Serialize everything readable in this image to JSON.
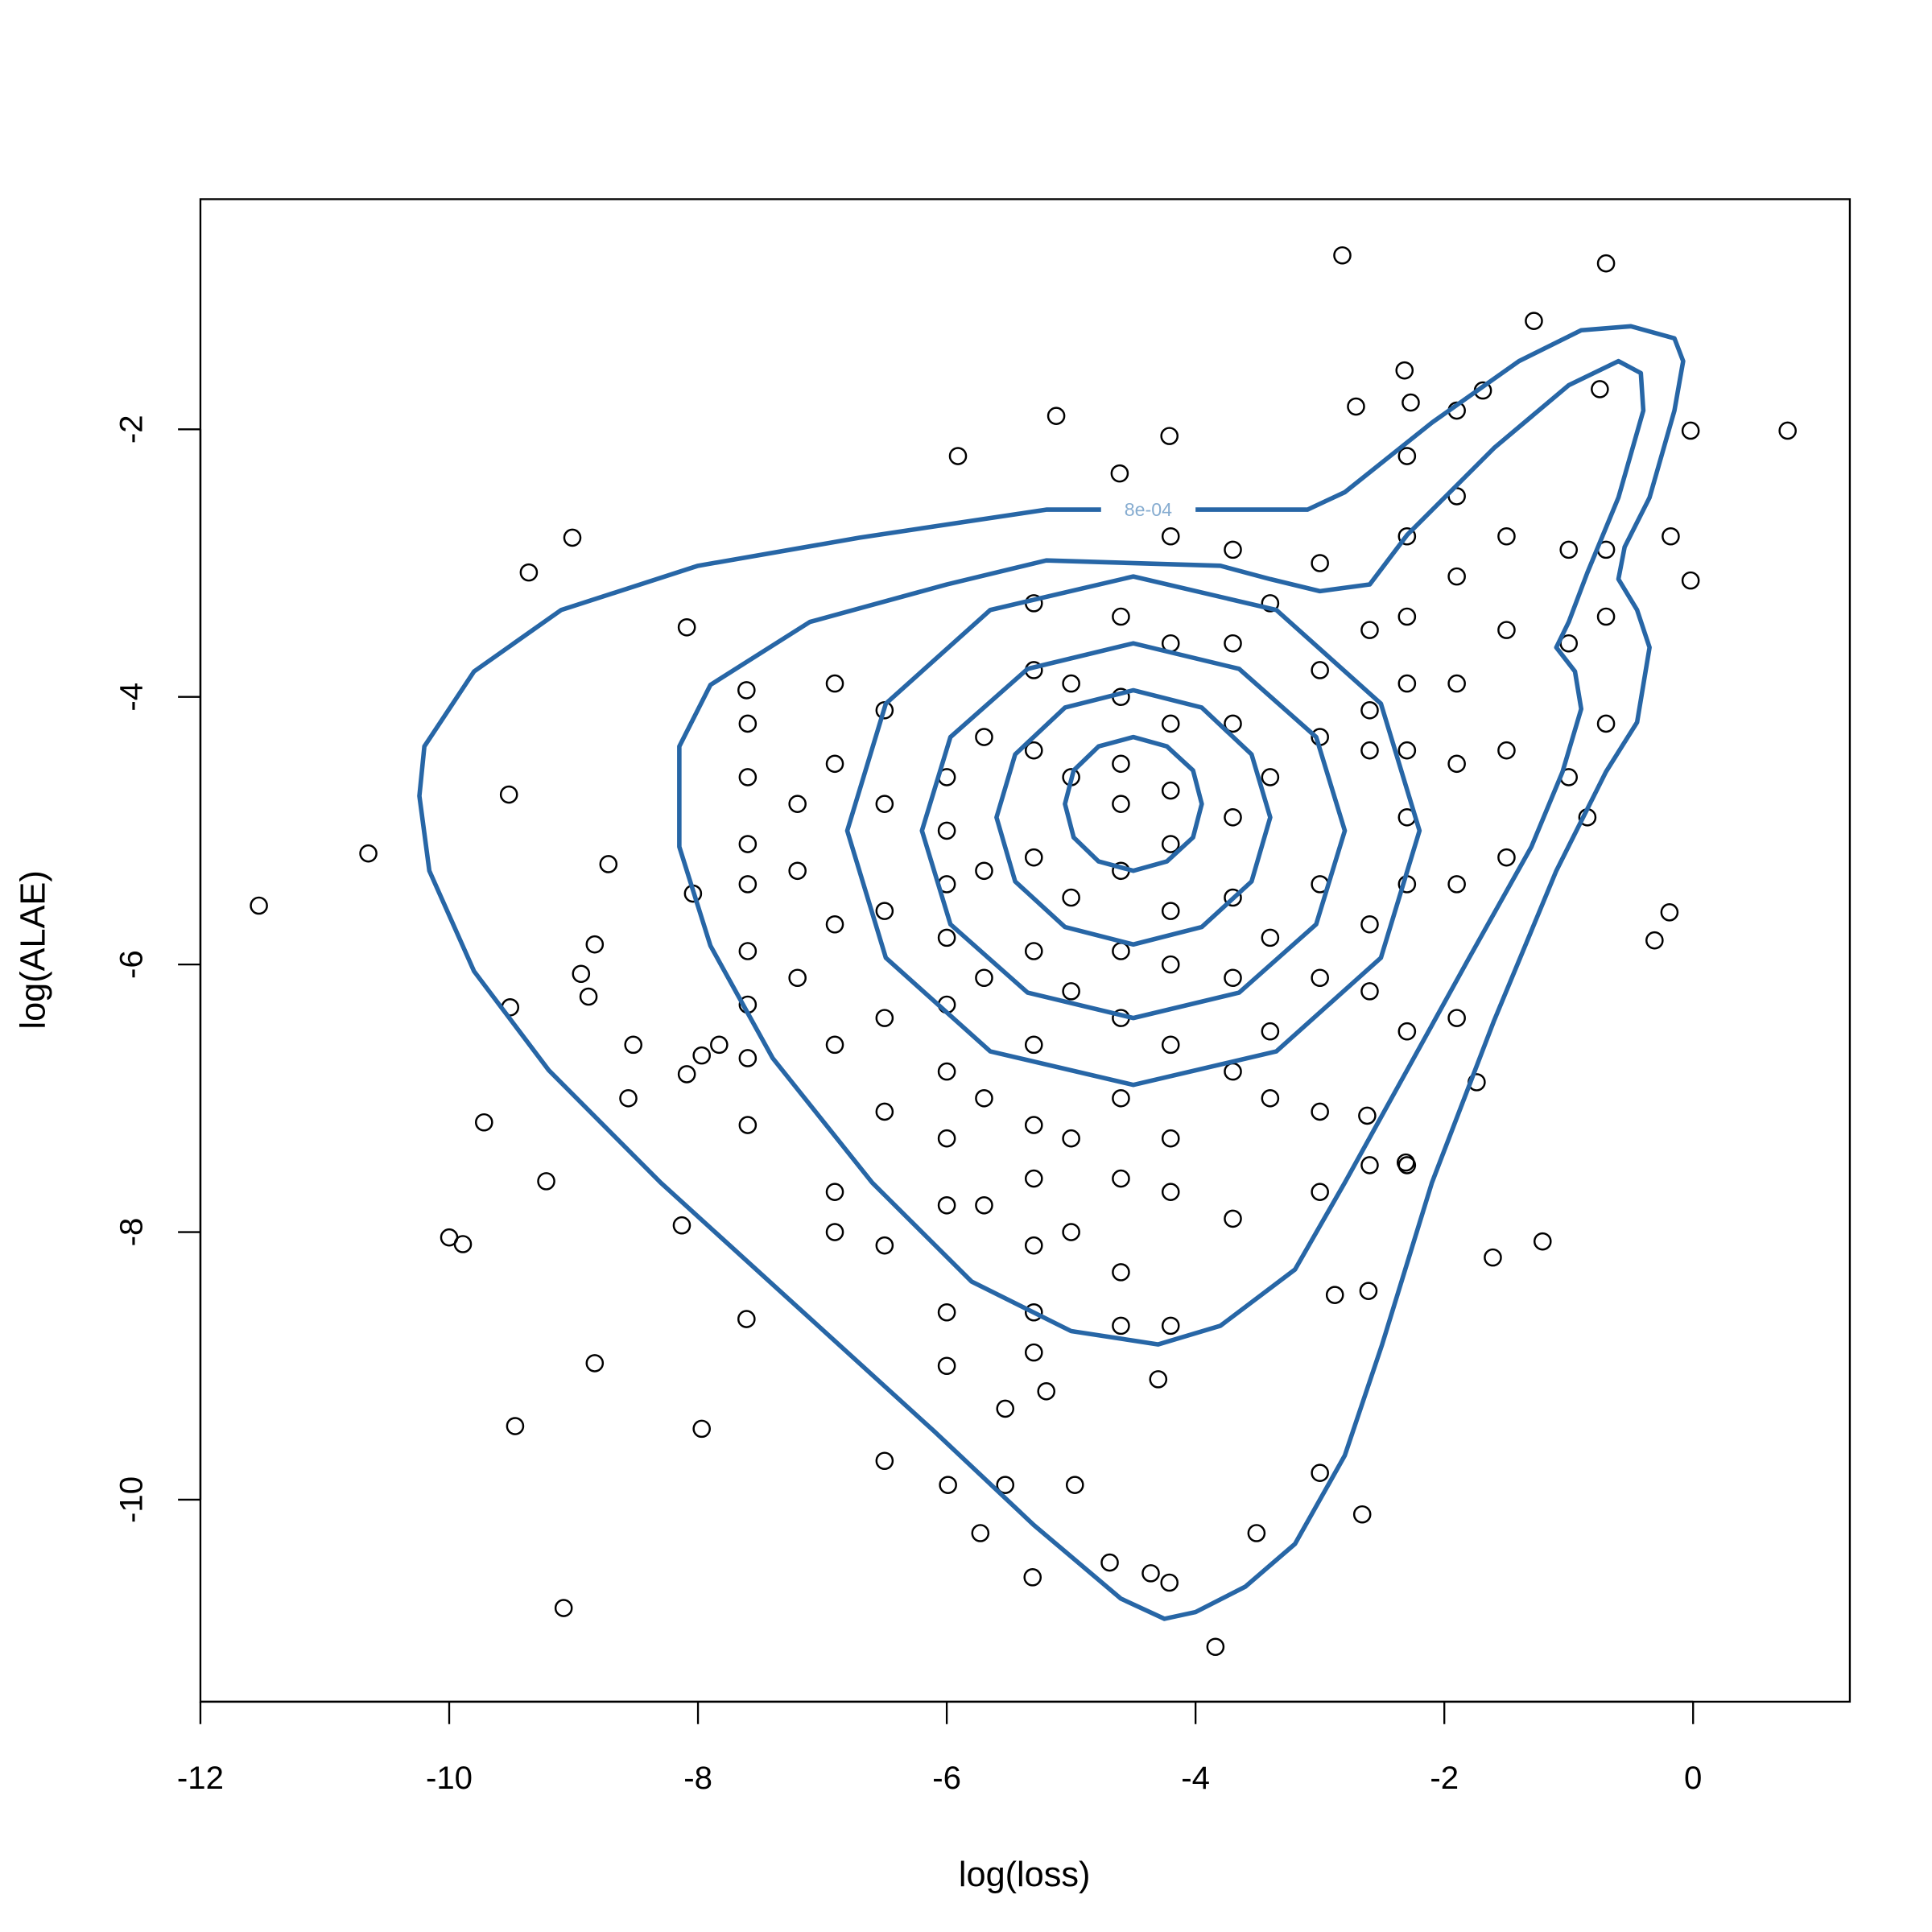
{
  "chart_data": {
    "type": "scatter",
    "x_label": "log(loss)",
    "y_label": "log(ALAE)",
    "xlim": [
      -12.0,
      1.26
    ],
    "ylim": [
      -11.51,
      -0.28
    ],
    "xticks": [
      -12,
      -10,
      -8,
      -6,
      -4,
      -2,
      0
    ],
    "yticks": [
      -10,
      -8,
      -6,
      -4,
      -2
    ],
    "point_color": "#000000",
    "contour_color": "#2766a6",
    "x": [
      -11.53,
      -10.65,
      -9.52,
      -10.0,
      -9.89,
      -9.72,
      -9.51,
      -9.47,
      -9.22,
      -9.08,
      -9.01,
      -9.36,
      -8.94,
      -8.88,
      -8.83,
      -8.83,
      -8.72,
      -8.56,
      -8.52,
      -8.13,
      -8.09,
      -8.09,
      -8.04,
      -7.97,
      -7.97,
      -7.83,
      -7.61,
      -7.61,
      -5.91,
      -5.12,
      -4.61,
      -4.21,
      -2.82,
      -0.7,
      -1.28,
      0.76,
      -0.02,
      -0.18,
      -0.02,
      -0.19,
      -0.31,
      -2.71,
      -2.32,
      -2.27,
      -1.9,
      -1.69,
      -3.0,
      -2.66,
      -3.51,
      -3.84,
      -4.21,
      -4.36,
      -4.69,
      -5.31,
      -4.97,
      -5.53,
      -5.99,
      -5.73,
      -6.5,
      -5.53,
      -5.2,
      -4.3,
      -2.61,
      -2.88,
      -1.61,
      -1.21,
      -1.74,
      -2.31,
      -2.62,
      -7.6,
      -7.6,
      -7.6,
      -7.6,
      -7.6,
      -7.6,
      -7.6,
      -7.6,
      -6.9,
      -6.9,
      -6.9,
      -6.9,
      -6.9,
      -6.9,
      -6.0,
      -6.0,
      -6.0,
      -6.0,
      -6.0,
      -6.0,
      -6.0,
      -6.0,
      -6.0,
      -6.0,
      -5.3,
      -5.3,
      -5.3,
      -5.3,
      -5.3,
      -5.3,
      -5.3,
      -5.3,
      -5.3,
      -5.3,
      -5.3,
      -4.6,
      -4.6,
      -4.6,
      -4.6,
      -4.6,
      -4.6,
      -4.6,
      -4.6,
      -4.6,
      -4.6,
      -4.6,
      -4.2,
      -4.2,
      -4.2,
      -4.2,
      -4.2,
      -4.2,
      -4.2,
      -4.2,
      -4.2,
      -4.2,
      -4.2,
      -3.7,
      -3.7,
      -3.7,
      -3.7,
      -3.7,
      -3.7,
      -3.7,
      -3.7,
      -3.0,
      -3.0,
      -3.0,
      -3.0,
      -3.0,
      -3.0,
      -3.0,
      -2.6,
      -2.6,
      -2.6,
      -2.6,
      -2.6,
      -2.6,
      -2.3,
      -2.3,
      -2.3,
      -2.3,
      -2.3,
      -2.3,
      -2.3,
      -2.3,
      -2.3,
      -1.9,
      -1.9,
      -1.9,
      -1.9,
      -1.9,
      -1.9,
      -1.5,
      -1.5,
      -1.5,
      -1.5,
      -6.5,
      -6.5,
      -6.5,
      -6.5,
      -6.5,
      -6.5,
      -5.7,
      -5.7,
      -5.7,
      -5.7,
      -5.7,
      -5.0,
      -5.0,
      -5.0,
      -5.0,
      -5.0,
      -5.0,
      -3.4,
      -3.4,
      -3.4,
      -3.4,
      -3.4,
      -7.2,
      -7.2,
      -7.2,
      -1.0,
      -1.0,
      -1.0,
      -0.85,
      -0.7,
      -0.7,
      -0.7,
      -0.75
    ],
    "values": [
      -5.56,
      -5.17,
      -4.73,
      -8.04,
      -8.09,
      -7.18,
      -6.32,
      -9.45,
      -7.62,
      -10.81,
      -2.81,
      -3.07,
      -6.07,
      -6.24,
      -5.85,
      -8.98,
      -5.25,
      -7.0,
      -6.6,
      -7.95,
      -3.48,
      -6.82,
      -5.47,
      -9.47,
      -6.68,
      -6.6,
      -3.95,
      -8.65,
      -2.2,
      -1.9,
      -2.33,
      -2.05,
      -0.7,
      -0.76,
      -1.19,
      -2.01,
      -2.01,
      -2.8,
      -3.13,
      -5.61,
      -5.82,
      -1.83,
      -1.56,
      -1.8,
      -1.86,
      -1.71,
      -9.8,
      -10.11,
      -10.25,
      -11.1,
      -10.62,
      -10.55,
      -10.47,
      -10.58,
      -9.89,
      -9.89,
      -9.89,
      -10.25,
      -9.71,
      -9.32,
      -9.19,
      -9.1,
      -8.44,
      -8.47,
      -8.19,
      -8.07,
      -6.88,
      -7.48,
      -7.13,
      -4.2,
      -4.6,
      -5.1,
      -5.4,
      -5.9,
      -6.3,
      -6.7,
      -7.2,
      -3.9,
      -4.5,
      -5.7,
      -6.6,
      -7.7,
      -8.0,
      -4.6,
      -5.0,
      -5.4,
      -5.8,
      -6.3,
      -6.8,
      -7.3,
      -7.8,
      -8.6,
      -9.0,
      -3.3,
      -3.8,
      -4.4,
      -5.2,
      -5.9,
      -6.6,
      -7.2,
      -7.6,
      -8.1,
      -8.6,
      -8.9,
      -3.4,
      -4.0,
      -4.5,
      -4.8,
      -5.3,
      -5.9,
      -6.4,
      -7.0,
      -7.6,
      -8.3,
      -8.7,
      -2.8,
      -3.6,
      -4.2,
      -4.7,
      -5.1,
      -5.6,
      -6.0,
      -6.6,
      -7.3,
      -7.7,
      -8.7,
      -2.9,
      -3.6,
      -4.2,
      -4.9,
      -5.5,
      -6.1,
      -6.8,
      -7.9,
      -3.0,
      -3.8,
      -4.3,
      -5.4,
      -6.1,
      -7.1,
      -7.7,
      -3.5,
      -4.1,
      -4.4,
      -5.7,
      -6.2,
      -7.5,
      -2.2,
      -2.8,
      -3.4,
      -3.9,
      -4.4,
      -4.9,
      -5.4,
      -6.5,
      -7.5,
      -2.5,
      -3.1,
      -3.9,
      -4.5,
      -5.4,
      -6.4,
      -2.8,
      -3.5,
      -4.4,
      -5.2,
      -4.1,
      -4.8,
      -5.6,
      -6.4,
      -7.1,
      -8.1,
      -4.3,
      -5.3,
      -6.1,
      -7.0,
      -7.8,
      -3.9,
      -4.6,
      -5.5,
      -6.2,
      -7.3,
      -8.0,
      -3.3,
      -4.6,
      -5.8,
      -6.5,
      -7.0,
      -4.8,
      -6.1,
      -5.3,
      -3.6,
      -2.9,
      -4.6,
      -4.9,
      -4.2,
      -3.4,
      -2.9,
      -1.7
    ],
    "contours": [
      {
        "label": "8e-04",
        "x": [
          -4.76,
          -5.2,
          -6.7,
          -8.0,
          -9.1,
          -9.8,
          -10.2,
          -10.24,
          -10.16,
          -9.8,
          -9.2,
          -8.3,
          -7.2,
          -6.1,
          -5.3,
          -4.6,
          -4.25,
          -4.0,
          -3.6,
          -3.2,
          -2.8,
          -2.5,
          -2.1,
          -1.6,
          -1.1,
          -0.7,
          -0.45,
          -0.35,
          -0.45,
          -0.6,
          -0.55,
          -0.35,
          -0.15,
          -0.08,
          -0.15,
          -0.5,
          -0.9,
          -1.4,
          -2.1,
          -2.8,
          -3.1,
          -3.6,
          -4.0
        ],
        "y": [
          -2.6,
          -2.6,
          -2.81,
          -3.02,
          -3.35,
          -3.81,
          -4.37,
          -4.74,
          -5.3,
          -6.05,
          -6.79,
          -7.63,
          -8.56,
          -9.49,
          -10.19,
          -10.74,
          -10.89,
          -10.84,
          -10.65,
          -10.33,
          -9.67,
          -8.84,
          -7.63,
          -6.42,
          -5.3,
          -4.56,
          -4.19,
          -3.63,
          -3.35,
          -3.12,
          -2.88,
          -2.51,
          -1.86,
          -1.49,
          -1.32,
          -1.23,
          -1.26,
          -1.49,
          -1.95,
          -2.47,
          -2.6,
          -2.6,
          -2.6
        ]
      },
      {
        "x": [
          -5.2,
          -6.0,
          -7.1,
          -7.9,
          -8.15,
          -8.15,
          -7.9,
          -7.4,
          -6.6,
          -5.8,
          -5.0,
          -4.3,
          -3.8,
          -3.2,
          -2.8,
          -2.3,
          -1.8,
          -1.3,
          -1.05,
          -0.9,
          -0.95,
          -1.1,
          -1.0,
          -0.85,
          -0.6,
          -0.4,
          -0.42,
          -0.6,
          -1.0,
          -1.6,
          -2.3,
          -2.6,
          -3.0,
          -3.4,
          -3.8
        ],
        "y": [
          -2.98,
          -3.16,
          -3.44,
          -3.91,
          -4.37,
          -5.12,
          -5.86,
          -6.7,
          -7.63,
          -8.37,
          -8.74,
          -8.84,
          -8.7,
          -8.28,
          -7.63,
          -6.79,
          -5.95,
          -5.12,
          -4.56,
          -4.09,
          -3.81,
          -3.63,
          -3.44,
          -3.07,
          -2.51,
          -1.86,
          -1.58,
          -1.49,
          -1.67,
          -2.14,
          -2.79,
          -3.16,
          -3.21,
          -3.12,
          -3.02
        ]
      },
      {
        "x": [
          -2.2,
          -2.51,
          -3.35,
          -4.5,
          -5.65,
          -6.49,
          -6.8,
          -6.49,
          -5.65,
          -4.5,
          -3.35,
          -2.51
        ],
        "y": [
          -5.0,
          -4.05,
          -3.35,
          -3.1,
          -3.35,
          -4.05,
          -5.0,
          -5.95,
          -6.65,
          -6.9,
          -6.65,
          -5.95
        ]
      },
      {
        "x": [
          -2.8,
          -3.03,
          -3.65,
          -4.5,
          -5.35,
          -5.97,
          -6.2,
          -5.97,
          -5.35,
          -4.5,
          -3.65,
          -3.03
        ],
        "y": [
          -5.0,
          -4.3,
          -3.79,
          -3.6,
          -3.79,
          -4.3,
          -5.0,
          -5.7,
          -6.21,
          -6.4,
          -6.21,
          -5.7
        ]
      },
      {
        "x": [
          -3.4,
          -3.55,
          -3.95,
          -4.5,
          -5.05,
          -5.45,
          -5.6,
          -5.45,
          -5.05,
          -4.5,
          -3.95,
          -3.55
        ],
        "y": [
          -4.9,
          -4.43,
          -4.08,
          -3.95,
          -4.08,
          -4.43,
          -4.9,
          -5.38,
          -5.72,
          -5.85,
          -5.72,
          -5.38
        ]
      },
      {
        "x": [
          -3.95,
          -4.02,
          -4.23,
          -4.5,
          -4.78,
          -4.98,
          -5.05,
          -4.98,
          -4.78,
          -4.5,
          -4.23,
          -4.02
        ],
        "y": [
          -4.8,
          -4.55,
          -4.37,
          -4.3,
          -4.37,
          -4.55,
          -4.8,
          -5.05,
          -5.23,
          -5.3,
          -5.23,
          -5.05
        ]
      }
    ]
  }
}
